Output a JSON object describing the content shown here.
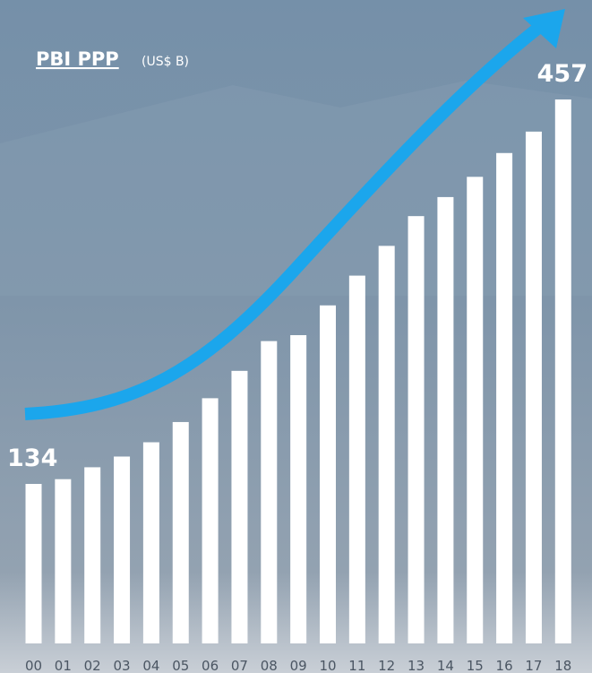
{
  "chart_data": {
    "type": "bar",
    "title": "PBI PPP",
    "subtitle": "(US$ B)",
    "categories": [
      "00",
      "01",
      "02",
      "03",
      "04",
      "05",
      "06",
      "07",
      "08",
      "09",
      "10",
      "11",
      "12",
      "13",
      "14",
      "15",
      "16",
      "17",
      "18"
    ],
    "values": [
      134,
      138,
      148,
      157,
      169,
      186,
      206,
      229,
      254,
      259,
      284,
      309,
      334,
      359,
      375,
      392,
      412,
      430,
      457
    ],
    "value_labels": [
      "134",
      null,
      null,
      null,
      null,
      null,
      null,
      null,
      null,
      null,
      null,
      null,
      null,
      null,
      null,
      null,
      null,
      null,
      "457"
    ],
    "color": "#ffffff"
  }
}
